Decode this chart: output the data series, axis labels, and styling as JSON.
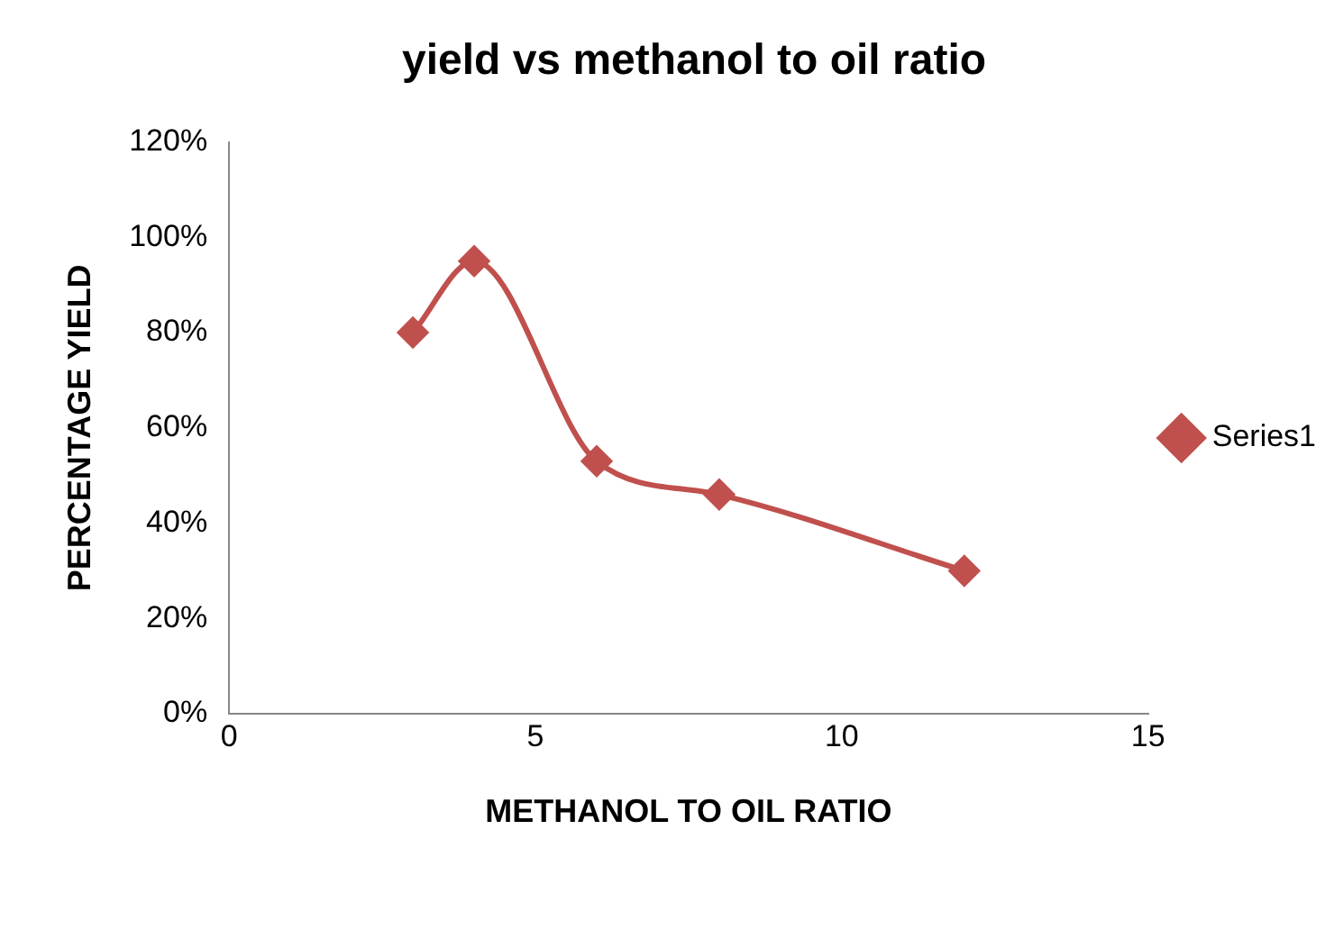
{
  "chart_data": {
    "type": "line",
    "title": "yield vs methanol to oil ratio",
    "xlabel": "METHANOL TO OIL RATIO",
    "ylabel": "PERCENTAGE YIELD",
    "x": [
      3,
      4,
      6,
      8,
      12
    ],
    "series": [
      {
        "name": "Series1",
        "color": "#c0504d",
        "values": [
          80,
          95,
          53,
          46,
          30
        ]
      }
    ],
    "xlim": [
      0,
      15
    ],
    "xticks": [
      0,
      5,
      10,
      15
    ],
    "ylim": [
      0,
      120
    ],
    "yticks": [
      {
        "value": 0,
        "label": "0%"
      },
      {
        "value": 20,
        "label": "20%"
      },
      {
        "value": 40,
        "label": "40%"
      },
      {
        "value": 60,
        "label": "60%"
      },
      {
        "value": 80,
        "label": "80%"
      },
      {
        "value": 100,
        "label": "100%"
      },
      {
        "value": 120,
        "label": "120%"
      }
    ],
    "grid": false,
    "legend": "right",
    "marker": "diamond",
    "line_style": "solid"
  }
}
